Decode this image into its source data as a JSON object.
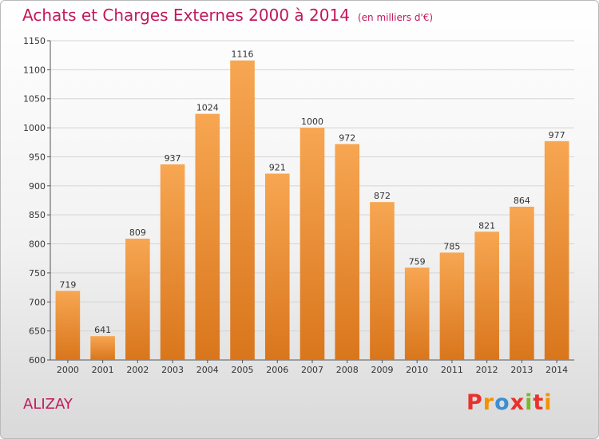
{
  "header": {
    "title": "Achats et Charges Externes 2000 à 2014",
    "unit": "(en milliers d'€)"
  },
  "footer": {
    "location": "ALIZAY",
    "brand": "Proxiti"
  },
  "colors": {
    "title": "#c2185b",
    "bar_top": "#f7a652",
    "bar_bottom": "#d9761c",
    "grid": "#d4d4d4",
    "logo_letters": [
      "#e9322c",
      "#f39200",
      "#3d8fd1",
      "#e9322c",
      "#7ab929",
      "#e9322c",
      "#f39200"
    ]
  },
  "chart_data": {
    "type": "bar",
    "title": "Achats et Charges Externes 2000 à 2014",
    "subtitle": "(en milliers d'€)",
    "xlabel": "",
    "ylabel": "",
    "categories": [
      "2000",
      "2001",
      "2002",
      "2003",
      "2004",
      "2005",
      "2006",
      "2007",
      "2008",
      "2009",
      "2010",
      "2011",
      "2012",
      "2013",
      "2014"
    ],
    "values": [
      719,
      641,
      809,
      937,
      1024,
      1116,
      921,
      1000,
      972,
      872,
      759,
      785,
      821,
      864,
      977
    ],
    "ylim": [
      600,
      1150
    ],
    "yticks": [
      600,
      650,
      700,
      750,
      800,
      850,
      900,
      950,
      1000,
      1050,
      1100,
      1150
    ],
    "grid": true,
    "legend": "none"
  }
}
